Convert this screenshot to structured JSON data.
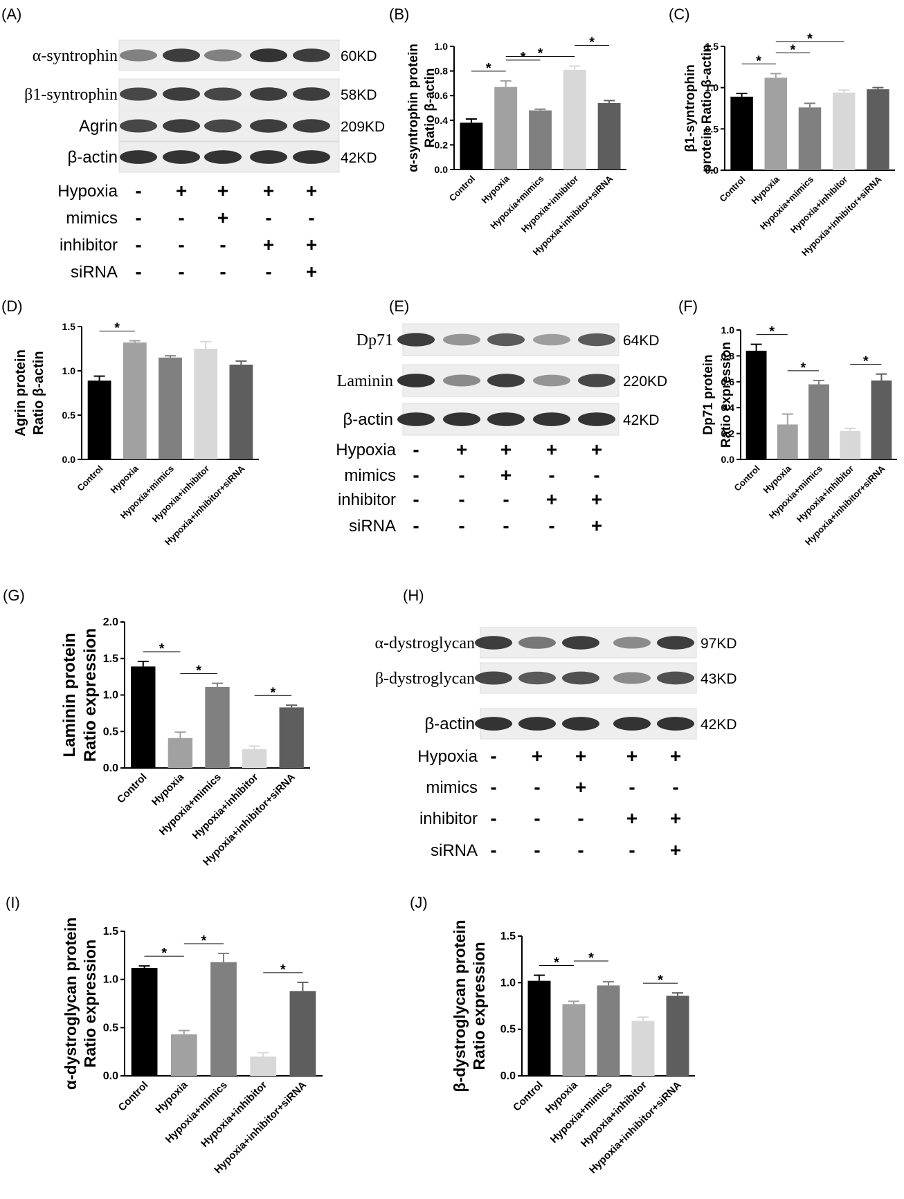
{
  "panel_labels": [
    "(A)",
    "(B)",
    "(C)",
    "(D)",
    "(E)",
    "(F)",
    "(G)",
    "(H)",
    "(I)",
    "(J)"
  ],
  "colors": {
    "Control": "#000000",
    "Hypoxia": "#a1a1a1",
    "Hypoxia+mimics": "#808080",
    "Hypoxia+inhibitor": "#d8d8d8",
    "Hypoxia+inhibitor+siRNA": "#5e5e5e"
  },
  "blots": [
    {
      "panel": "(A)",
      "bands": [
        {
          "label": "α-syntrophin",
          "size": "60KD",
          "serif": true,
          "intensity": [
            0.55,
            0.9,
            0.55,
            0.95,
            0.9
          ]
        },
        {
          "label": "β1-syntrophin",
          "size": "58KD",
          "serif": true,
          "intensity": [
            0.85,
            0.9,
            0.85,
            0.9,
            0.9
          ]
        },
        {
          "label": "Agrin",
          "size": "209KD",
          "serif": false,
          "intensity": [
            0.85,
            0.9,
            0.85,
            0.9,
            0.9
          ]
        },
        {
          "label": "β-actin",
          "size": "42KD",
          "serif": false,
          "intensity": [
            0.95,
            0.95,
            0.95,
            0.95,
            0.95
          ]
        }
      ],
      "conditions": [
        {
          "label": "Hypoxia",
          "signs": [
            "-",
            "+",
            "+",
            "+",
            "+"
          ]
        },
        {
          "label": "mimics",
          "signs": [
            "-",
            "-",
            "+",
            "-",
            "-"
          ]
        },
        {
          "label": "inhibitor",
          "signs": [
            "-",
            "-",
            "-",
            "+",
            "+"
          ]
        },
        {
          "label": "siRNA",
          "signs": [
            "-",
            "-",
            "-",
            "-",
            "+"
          ]
        }
      ]
    },
    {
      "panel": "(E)",
      "bands": [
        {
          "label": "Dp71",
          "size": "64KD",
          "serif": true,
          "intensity": [
            0.9,
            0.45,
            0.75,
            0.4,
            0.75
          ]
        },
        {
          "label": "Laminin",
          "size": "220KD",
          "serif": true,
          "intensity": [
            0.95,
            0.5,
            0.9,
            0.45,
            0.85
          ]
        },
        {
          "label": "β-actin",
          "size": "42KD",
          "serif": false,
          "intensity": [
            0.95,
            0.95,
            0.95,
            0.95,
            0.95
          ]
        }
      ],
      "conditions": [
        {
          "label": "Hypoxia",
          "signs": [
            "-",
            "+",
            "+",
            "+",
            "+"
          ]
        },
        {
          "label": "mimics",
          "signs": [
            "-",
            "-",
            "+",
            "-",
            "-"
          ]
        },
        {
          "label": "inhibitor",
          "signs": [
            "-",
            "-",
            "-",
            "+",
            "+"
          ]
        },
        {
          "label": "siRNA",
          "signs": [
            "-",
            "-",
            "-",
            "-",
            "+"
          ]
        }
      ]
    },
    {
      "panel": "(H)",
      "bands": [
        {
          "label": "α-dystroglycan",
          "size": "97KD",
          "serif": true,
          "intensity": [
            0.9,
            0.6,
            0.9,
            0.5,
            0.9
          ]
        },
        {
          "label": "β-dystroglycan",
          "size": "43KD",
          "serif": true,
          "intensity": [
            0.85,
            0.75,
            0.8,
            0.5,
            0.8
          ]
        },
        {
          "label": "β-actin",
          "size": "42KD",
          "serif": false,
          "intensity": [
            0.95,
            0.95,
            0.95,
            0.95,
            0.95
          ]
        }
      ],
      "conditions": [
        {
          "label": "Hypoxia",
          "signs": [
            "-",
            "+",
            "+",
            "+",
            "+"
          ]
        },
        {
          "label": "mimics",
          "signs": [
            "-",
            "-",
            "+",
            "-",
            "-"
          ]
        },
        {
          "label": "inhibitor",
          "signs": [
            "-",
            "-",
            "-",
            "+",
            "+"
          ]
        },
        {
          "label": "siRNA",
          "signs": [
            "-",
            "-",
            "-",
            "-",
            "+"
          ]
        }
      ]
    }
  ],
  "chart_data": [
    {
      "panel": "(B)",
      "type": "bar",
      "ylabel": [
        "α-syntrophin protein",
        "Ratio β-actin"
      ],
      "ylim": [
        0,
        1.0
      ],
      "yticks": [
        "0.0",
        "0.2",
        "0.4",
        "0.6",
        "0.8",
        "1.0"
      ],
      "categories": [
        "Control",
        "Hypoxia",
        "Hypoxia+mimics",
        "Hypoxia+inhibitor",
        "Hypoxia+inhibitor+siRNA"
      ],
      "values": [
        0.38,
        0.67,
        0.48,
        0.81,
        0.54
      ],
      "errors": [
        0.03,
        0.05,
        0.01,
        0.03,
        0.02
      ],
      "significance": [
        {
          "from": 0,
          "to": 1,
          "label": "*"
        },
        {
          "from": 1,
          "to": 2,
          "label": "*"
        },
        {
          "from": 1,
          "to": 3,
          "label": "*"
        },
        {
          "from": 3,
          "to": 4,
          "label": "*"
        }
      ]
    },
    {
      "panel": "(C)",
      "type": "bar",
      "ylabel": [
        "β1-syntrophin",
        "protein Ratio β-actin"
      ],
      "ylim": [
        0,
        1.5
      ],
      "yticks": [
        "0.0",
        "0.5",
        "1.0",
        "1.5"
      ],
      "categories": [
        "Control",
        "Hypoxia",
        "Hypoxia+mimics",
        "Hypoxia+inhibitor",
        "Hypoxia+inhibitor+siRNA"
      ],
      "values": [
        0.89,
        1.12,
        0.76,
        0.94,
        0.98
      ],
      "errors": [
        0.04,
        0.05,
        0.05,
        0.03,
        0.02
      ],
      "significance": [
        {
          "from": 0,
          "to": 1,
          "label": "*"
        },
        {
          "from": 1,
          "to": 2,
          "label": "*"
        },
        {
          "from": 1,
          "to": 3,
          "label": "*"
        }
      ]
    },
    {
      "panel": "(D)",
      "type": "bar",
      "ylabel": [
        "Agrin protein",
        "Ratio β-actin"
      ],
      "ylim": [
        0,
        1.5
      ],
      "yticks": [
        "0.0",
        "0.5",
        "1.0",
        "1.5"
      ],
      "categories": [
        "Control",
        "Hypoxia",
        "Hypoxia+mimics",
        "Hypoxia+inhibitor",
        "Hypoxia+inhibitor+siRNA"
      ],
      "values": [
        0.89,
        1.32,
        1.15,
        1.25,
        1.07
      ],
      "errors": [
        0.05,
        0.02,
        0.02,
        0.08,
        0.04
      ],
      "significance": [
        {
          "from": 0,
          "to": 1,
          "label": "*"
        }
      ]
    },
    {
      "panel": "(F)",
      "type": "bar",
      "ylabel": [
        "Dp71 protein",
        "Ratio expression"
      ],
      "ylim": [
        0,
        1.0
      ],
      "yticks": [
        "0.0",
        "0.2",
        "0.4",
        "0.6",
        "0.8",
        "1.0"
      ],
      "categories": [
        "Control",
        "Hypoxia",
        "Hypoxia+mimics",
        "Hypoxia+inhibitor",
        "Hypoxia+inhibitor+siRNA"
      ],
      "values": [
        0.84,
        0.27,
        0.58,
        0.22,
        0.61
      ],
      "errors": [
        0.05,
        0.08,
        0.03,
        0.02,
        0.05
      ],
      "significance": [
        {
          "from": 0,
          "to": 1,
          "label": "*"
        },
        {
          "from": 1,
          "to": 2,
          "label": "*"
        },
        {
          "from": 3,
          "to": 4,
          "label": "*"
        }
      ]
    },
    {
      "panel": "(G)",
      "type": "bar",
      "ylabel": [
        "Laminin protein",
        "Ratio expression"
      ],
      "ylim": [
        0,
        2.0
      ],
      "yticks": [
        "0.0",
        "0.5",
        "1.0",
        "1.5",
        "2.0"
      ],
      "categories": [
        "Control",
        "Hypoxia",
        "Hypoxia+mimics",
        "Hypoxia+inhibitor",
        "Hypoxia+inhibitor+siRNA"
      ],
      "values": [
        1.39,
        0.41,
        1.11,
        0.26,
        0.83
      ],
      "errors": [
        0.07,
        0.08,
        0.05,
        0.04,
        0.03
      ],
      "significance": [
        {
          "from": 0,
          "to": 1,
          "label": "*"
        },
        {
          "from": 1,
          "to": 2,
          "label": "*"
        },
        {
          "from": 3,
          "to": 4,
          "label": "*"
        }
      ]
    },
    {
      "panel": "(I)",
      "type": "bar",
      "ylabel": [
        "α-dystroglycan protein",
        "Ratio expression"
      ],
      "ylim": [
        0,
        1.5
      ],
      "yticks": [
        "0.0",
        "0.5",
        "1.0",
        "1.5"
      ],
      "categories": [
        "Control",
        "Hypoxia",
        "Hypoxia+mimics",
        "Hypoxia+inhibitor",
        "Hypoxia+inhibitor+siRNA"
      ],
      "values": [
        1.12,
        0.43,
        1.18,
        0.2,
        0.88
      ],
      "errors": [
        0.02,
        0.04,
        0.09,
        0.04,
        0.09
      ],
      "significance": [
        {
          "from": 0,
          "to": 1,
          "label": "*"
        },
        {
          "from": 1,
          "to": 2,
          "label": "*"
        },
        {
          "from": 3,
          "to": 4,
          "label": "*"
        }
      ]
    },
    {
      "panel": "(J)",
      "type": "bar",
      "ylabel": [
        "β-dystroglycan protein",
        "Ratio expression"
      ],
      "ylim": [
        0,
        1.5
      ],
      "yticks": [
        "0.0",
        "0.5",
        "1.0",
        "1.5"
      ],
      "categories": [
        "Control",
        "Hypoxia",
        "Hypoxia+mimics",
        "Hypoxia+inhibitor",
        "Hypoxia+inhibitor+siRNA"
      ],
      "values": [
        1.02,
        0.77,
        0.97,
        0.59,
        0.86
      ],
      "errors": [
        0.06,
        0.03,
        0.04,
        0.04,
        0.03
      ],
      "significance": [
        {
          "from": 0,
          "to": 1,
          "label": "*"
        },
        {
          "from": 1,
          "to": 2,
          "label": "*"
        },
        {
          "from": 3,
          "to": 4,
          "label": "*"
        }
      ]
    }
  ]
}
